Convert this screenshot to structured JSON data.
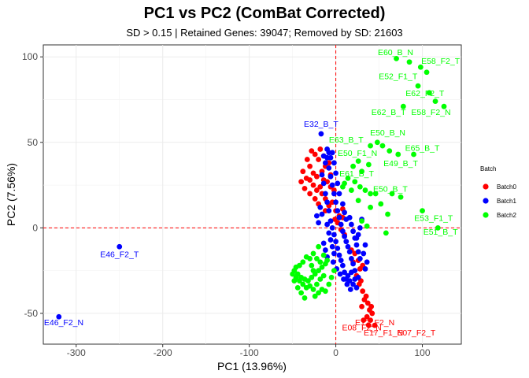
{
  "chart_data": {
    "type": "scatter",
    "title": "PC1 vs PC2 (ComBat Corrected)",
    "subtitle": "SD > 0.15 | Retained Genes: 39047; Removed by SD: 21603",
    "xlabel": "PC1 (13.96%)",
    "ylabel": "PC2 (7.56%)",
    "xlim": [
      -338,
      145
    ],
    "ylim": [
      -68,
      107
    ],
    "xticks": [
      -300,
      -200,
      -100,
      0,
      100
    ],
    "yticks": [
      -50,
      0,
      50,
      100
    ],
    "grid": true,
    "reference_lines": {
      "x": 0,
      "y": 0,
      "color": "#ff0000",
      "style": "dashed"
    },
    "legend": {
      "title": "Batch",
      "position": "right"
    },
    "series": [
      {
        "name": "Batch0",
        "color": "#ff0000",
        "points": [
          [
            -28,
            45
          ],
          [
            -24,
            43
          ],
          [
            -20,
            40
          ],
          [
            -18,
            46
          ],
          [
            -14,
            42
          ],
          [
            -33,
            40
          ],
          [
            -30,
            36
          ],
          [
            -26,
            32
          ],
          [
            -22,
            30
          ],
          [
            -16,
            33
          ],
          [
            -12,
            36
          ],
          [
            -8,
            38
          ],
          [
            -6,
            31
          ],
          [
            -10,
            27
          ],
          [
            -14,
            28
          ],
          [
            -18,
            24
          ],
          [
            -22,
            22
          ],
          [
            -26,
            25
          ],
          [
            -30,
            28
          ],
          [
            -38,
            33
          ],
          [
            -34,
            29
          ],
          [
            -40,
            27
          ],
          [
            -36,
            23
          ],
          [
            -30,
            20
          ],
          [
            -24,
            17
          ],
          [
            -20,
            14
          ],
          [
            -16,
            20
          ],
          [
            -12,
            17
          ],
          [
            -8,
            13
          ],
          [
            -4,
            15
          ],
          [
            0,
            10
          ],
          [
            4,
            7
          ],
          [
            8,
            11
          ],
          [
            -2,
            22
          ],
          [
            -6,
            24
          ],
          [
            2,
            3
          ],
          [
            6,
            -1
          ],
          [
            10,
            -4
          ],
          [
            -1,
            5
          ],
          [
            -12,
            10
          ],
          [
            8,
            6
          ],
          [
            22,
            -15
          ],
          [
            26,
            -19
          ],
          [
            28,
            -24
          ],
          [
            31,
            -22
          ],
          [
            24,
            -28
          ],
          [
            27,
            -33
          ],
          [
            29,
            -31
          ],
          [
            31,
            -37
          ],
          [
            33,
            -42
          ],
          [
            30,
            -46
          ],
          [
            35,
            -40
          ],
          [
            37,
            -44
          ],
          [
            39,
            -48
          ],
          [
            36,
            -52
          ],
          [
            40,
            -54
          ],
          [
            38,
            -57
          ],
          [
            42,
            -50
          ],
          [
            41,
            -46
          ],
          [
            18,
            -13
          ],
          [
            20,
            -20
          ],
          [
            32,
            -54
          ],
          [
            45,
            -57
          ]
        ],
        "labels": [
          {
            "text": "E08_F2_N",
            "x": 30,
            "y": -60
          },
          {
            "text": "E12_F2_N",
            "x": 45,
            "y": -57
          },
          {
            "text": "E17_F1_N",
            "x": 55,
            "y": -63
          },
          {
            "text": "E07_F2_T",
            "x": 93,
            "y": -63
          }
        ]
      },
      {
        "name": "Batch1",
        "color": "#0000ff",
        "points": [
          [
            -320,
            -52
          ],
          [
            -250,
            -11
          ],
          [
            -17,
            55
          ],
          [
            -14,
            42
          ],
          [
            -12,
            38
          ],
          [
            -10,
            41
          ],
          [
            -8,
            35
          ],
          [
            -6,
            30
          ],
          [
            -4,
            25
          ],
          [
            -2,
            20
          ],
          [
            0,
            15
          ],
          [
            2,
            10
          ],
          [
            4,
            6
          ],
          [
            6,
            2
          ],
          [
            8,
            -2
          ],
          [
            10,
            -5
          ],
          [
            12,
            -8
          ],
          [
            14,
            -11
          ],
          [
            16,
            -14
          ],
          [
            18,
            -18
          ],
          [
            20,
            -21
          ],
          [
            22,
            -25
          ],
          [
            -6,
            4
          ],
          [
            -4,
            0
          ],
          [
            -2,
            -4
          ],
          [
            0,
            -8
          ],
          [
            2,
            -12
          ],
          [
            4,
            -16
          ],
          [
            6,
            -19
          ],
          [
            8,
            -22
          ],
          [
            10,
            -26
          ],
          [
            12,
            -30
          ],
          [
            -8,
            10
          ],
          [
            -10,
            15
          ],
          [
            -12,
            20
          ],
          [
            -14,
            26
          ],
          [
            -16,
            31
          ],
          [
            -10,
            2
          ],
          [
            -8,
            -3
          ],
          [
            -6,
            -7
          ],
          [
            -4,
            -11
          ],
          [
            -2,
            -15
          ],
          [
            14,
            -28
          ],
          [
            16,
            -31
          ],
          [
            18,
            -26
          ],
          [
            20,
            -33
          ],
          [
            22,
            -30
          ],
          [
            24,
            -35
          ],
          [
            26,
            -29
          ],
          [
            18,
            2
          ],
          [
            20,
            -2
          ],
          [
            22,
            -6
          ],
          [
            24,
            -10
          ],
          [
            26,
            -14
          ],
          [
            28,
            -18
          ],
          [
            12,
            5
          ],
          [
            10,
            9
          ],
          [
            16,
            6
          ],
          [
            -14,
            -9
          ],
          [
            -12,
            -13
          ],
          [
            -10,
            -17
          ],
          [
            8,
            14
          ],
          [
            4,
            20
          ],
          [
            2,
            26
          ],
          [
            0,
            32
          ],
          [
            -2,
            38
          ],
          [
            -4,
            44
          ],
          [
            -6,
            41
          ],
          [
            -8,
            44
          ],
          [
            -10,
            46
          ],
          [
            30,
            5
          ],
          [
            28,
            0
          ],
          [
            26,
            -4
          ],
          [
            24,
            -6
          ],
          [
            34,
            -10
          ],
          [
            32,
            -15
          ],
          [
            36,
            -20
          ],
          [
            34,
            -24
          ],
          [
            -16,
            8
          ],
          [
            -18,
            12
          ],
          [
            -20,
            3
          ],
          [
            -22,
            7
          ],
          [
            -3,
            -20
          ],
          [
            1,
            -24
          ],
          [
            5,
            -27
          ],
          [
            9,
            -30
          ],
          [
            13,
            -33
          ],
          [
            17,
            -36
          ]
        ],
        "labels": [
          {
            "text": "E32_B_T",
            "x": -17,
            "y": 59
          },
          {
            "text": "E46_F2_T",
            "x": -250,
            "y": -17
          },
          {
            "text": "E46_F2_N",
            "x": -320,
            "y": -57
          }
        ]
      },
      {
        "name": "Batch2",
        "color": "#00ff00",
        "points": [
          [
            70,
            99
          ],
          [
            85,
            97
          ],
          [
            98,
            94
          ],
          [
            105,
            91
          ],
          [
            95,
            83
          ],
          [
            108,
            79
          ],
          [
            115,
            74
          ],
          [
            125,
            71
          ],
          [
            78,
            71
          ],
          [
            40,
            48
          ],
          [
            48,
            50
          ],
          [
            54,
            48
          ],
          [
            62,
            45
          ],
          [
            72,
            43
          ],
          [
            90,
            43
          ],
          [
            38,
            37
          ],
          [
            26,
            39
          ],
          [
            30,
            33
          ],
          [
            20,
            36
          ],
          [
            10,
            26
          ],
          [
            14,
            29
          ],
          [
            18,
            22
          ],
          [
            22,
            27
          ],
          [
            8,
            24
          ],
          [
            28,
            24
          ],
          [
            34,
            22
          ],
          [
            40,
            20
          ],
          [
            46,
            20
          ],
          [
            26,
            16
          ],
          [
            40,
            12
          ],
          [
            30,
            4
          ],
          [
            36,
            1
          ],
          [
            52,
            14
          ],
          [
            60,
            8
          ],
          [
            65,
            20
          ],
          [
            100,
            10
          ],
          [
            58,
            -3
          ],
          [
            75,
            18
          ],
          [
            118,
            0
          ],
          [
            -26,
            -15
          ],
          [
            -30,
            -18
          ],
          [
            -34,
            -17
          ],
          [
            -38,
            -20
          ],
          [
            -42,
            -22
          ],
          [
            -46,
            -23
          ],
          [
            -48,
            -25
          ],
          [
            -44,
            -27
          ],
          [
            -40,
            -29
          ],
          [
            -36,
            -30
          ],
          [
            -32,
            -31
          ],
          [
            -28,
            -29
          ],
          [
            -24,
            -27
          ],
          [
            -20,
            -25
          ],
          [
            -16,
            -23
          ],
          [
            -12,
            -21
          ],
          [
            -14,
            -28
          ],
          [
            -18,
            -30
          ],
          [
            -22,
            -33
          ],
          [
            -26,
            -36
          ],
          [
            -30,
            -34
          ],
          [
            -34,
            -35
          ],
          [
            -38,
            -33
          ],
          [
            -42,
            -31
          ],
          [
            -46,
            -29
          ],
          [
            -50,
            -27
          ],
          [
            -18,
            -20
          ],
          [
            -22,
            -18
          ],
          [
            -14,
            -16
          ],
          [
            -10,
            -19
          ],
          [
            -20,
            -38
          ],
          [
            -16,
            -36
          ],
          [
            -24,
            -40
          ],
          [
            -5,
            -29
          ],
          [
            -8,
            -33
          ],
          [
            -12,
            -37
          ],
          [
            -28,
            -22
          ],
          [
            -26,
            -25
          ],
          [
            -40,
            -38
          ],
          [
            -36,
            -41
          ],
          [
            -44,
            -35
          ],
          [
            -48,
            -31
          ],
          [
            -2,
            -25
          ],
          [
            -20,
            -11
          ]
        ],
        "labels": [
          {
            "text": "E60_B_N",
            "x": 69,
            "y": 101
          },
          {
            "text": "E58_F2_T",
            "x": 121,
            "y": 96
          },
          {
            "text": "E52_F1_T",
            "x": 72,
            "y": 87
          },
          {
            "text": "E62_F2_T",
            "x": 103,
            "y": 77
          },
          {
            "text": "E62_B_T",
            "x": 61,
            "y": 66
          },
          {
            "text": "E58_F2_N",
            "x": 110,
            "y": 66
          },
          {
            "text": "E50_B_N",
            "x": 60,
            "y": 54
          },
          {
            "text": "E63_B_T",
            "x": 12,
            "y": 50
          },
          {
            "text": "E50_F1_N",
            "x": 25,
            "y": 42
          },
          {
            "text": "E65_B_T",
            "x": 100,
            "y": 45
          },
          {
            "text": "E49_B_T",
            "x": 75,
            "y": 36
          },
          {
            "text": "E61_B_T",
            "x": 24,
            "y": 30
          },
          {
            "text": "E50_B_T",
            "x": 63,
            "y": 21
          },
          {
            "text": "E53_F1_T",
            "x": 113,
            "y": 4
          },
          {
            "text": "E51_B_T",
            "x": 121,
            "y": -4
          }
        ]
      }
    ]
  }
}
